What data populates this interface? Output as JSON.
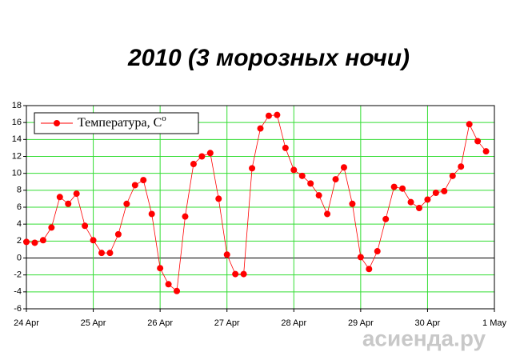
{
  "chart_data": {
    "type": "line",
    "title": "2010 (3 морозных ночи)",
    "categories": [
      "24 Apr",
      null,
      null,
      null,
      null,
      null,
      null,
      null,
      "25 Apr",
      null,
      null,
      null,
      null,
      null,
      null,
      null,
      "26 Apr",
      null,
      null,
      null,
      null,
      null,
      null,
      null,
      "27 Apr",
      null,
      null,
      null,
      null,
      null,
      null,
      null,
      "28 Apr",
      null,
      null,
      null,
      null,
      null,
      null,
      null,
      "29 Apr",
      null,
      null,
      null,
      null,
      null,
      null,
      null,
      "30 Apr",
      null,
      null,
      null,
      null,
      null,
      null,
      null,
      "1 May"
    ],
    "series": [
      {
        "name": "Температура, С",
        "name_superscript": "o",
        "color": "#ff0000",
        "values": [
          1.9,
          1.8,
          2.1,
          3.6,
          7.2,
          6.4,
          7.6,
          3.8,
          2.1,
          0.6,
          0.6,
          2.8,
          6.4,
          8.6,
          9.2,
          5.2,
          -1.2,
          -3.1,
          -3.9,
          4.9,
          11.1,
          12.0,
          12.4,
          7.0,
          0.4,
          -1.9,
          -1.9,
          10.6,
          15.3,
          16.8,
          16.9,
          13.0,
          10.4,
          9.7,
          8.8,
          7.4,
          5.2,
          9.3,
          10.7,
          6.4,
          0.1,
          -1.3,
          0.8,
          4.6,
          8.4,
          8.2,
          6.6,
          5.9,
          6.9,
          7.7,
          7.9,
          9.7,
          10.8,
          15.8,
          13.8,
          12.6,
          null
        ]
      }
    ],
    "ylim": [
      -6,
      18
    ],
    "yticks": [
      -6,
      -4,
      -2,
      0,
      2,
      4,
      6,
      8,
      10,
      12,
      14,
      16,
      18
    ],
    "grid": true,
    "grid_color": "#33dd33",
    "legend": "upper-left",
    "watermark": "асиенда.ру"
  }
}
